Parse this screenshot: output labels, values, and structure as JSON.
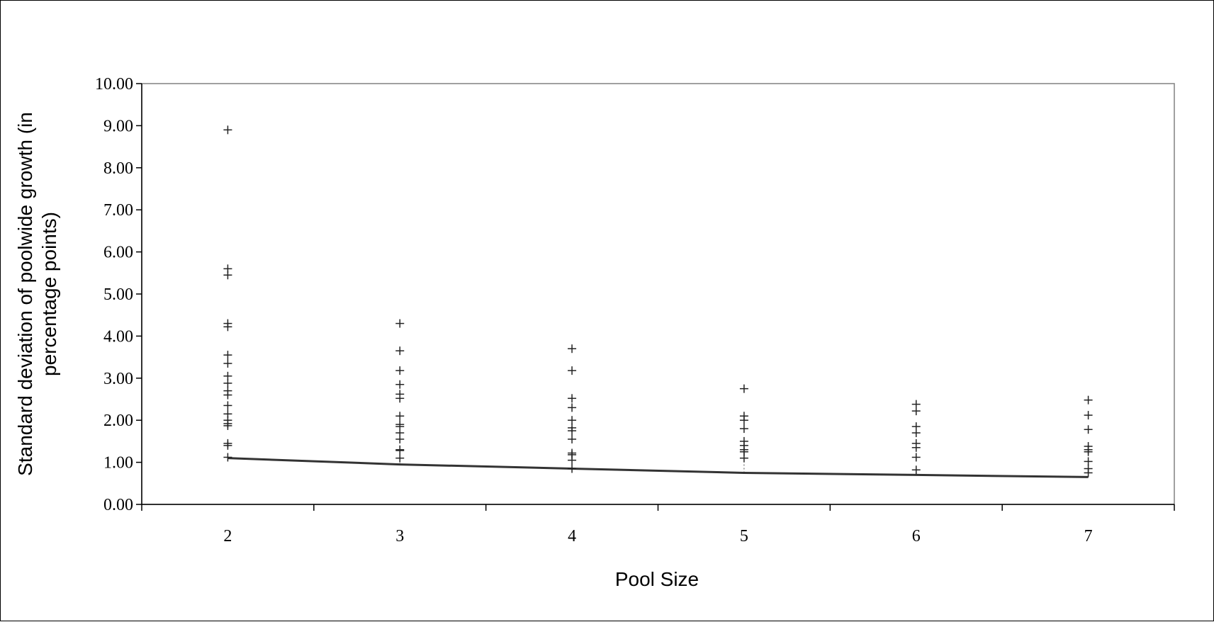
{
  "chart_data": {
    "type": "scatter",
    "title": "",
    "xlabel": "Pool Size",
    "ylabel_lines": [
      "Standard deviation of poolwide growth (in",
      "percentage points)"
    ],
    "categories": [
      "2",
      "3",
      "4",
      "5",
      "6",
      "7"
    ],
    "ylim": [
      0,
      10
    ],
    "y_ticks": [
      "0.00",
      "1.00",
      "2.00",
      "3.00",
      "4.00",
      "5.00",
      "6.00",
      "7.00",
      "8.00",
      "9.00",
      "10.00"
    ],
    "grid": false,
    "legend": "none",
    "colors": {
      "points": "#222222",
      "line": "#333333",
      "axis": "#000000"
    },
    "series": [
      {
        "type": "scatter",
        "marker": "plus",
        "points": [
          [
            2,
            8.9
          ],
          [
            2,
            5.6
          ],
          [
            2,
            5.45
          ],
          [
            2,
            4.3
          ],
          [
            2,
            4.22
          ],
          [
            2,
            3.55
          ],
          [
            2,
            3.35
          ],
          [
            2,
            3.05
          ],
          [
            2,
            2.88
          ],
          [
            2,
            2.7
          ],
          [
            2,
            2.6
          ],
          [
            2,
            2.35
          ],
          [
            2,
            2.15
          ],
          [
            2,
            2.0
          ],
          [
            2,
            1.92
          ],
          [
            2,
            1.87
          ],
          [
            2,
            1.45
          ],
          [
            2,
            1.4
          ],
          [
            2,
            1.12
          ],
          [
            3,
            4.3
          ],
          [
            3,
            3.65
          ],
          [
            3,
            3.18
          ],
          [
            3,
            2.85
          ],
          [
            3,
            2.62
          ],
          [
            3,
            2.52
          ],
          [
            3,
            2.1
          ],
          [
            3,
            1.9
          ],
          [
            3,
            1.85
          ],
          [
            3,
            1.7
          ],
          [
            3,
            1.55
          ],
          [
            3,
            1.3
          ],
          [
            3,
            1.28
          ],
          [
            3,
            1.1
          ],
          [
            4,
            3.7
          ],
          [
            4,
            3.18
          ],
          [
            4,
            2.52
          ],
          [
            4,
            2.3
          ],
          [
            4,
            2.0
          ],
          [
            4,
            1.82
          ],
          [
            4,
            1.75
          ],
          [
            4,
            1.55
          ],
          [
            4,
            1.22
          ],
          [
            4,
            1.18
          ],
          [
            4,
            1.05
          ],
          [
            4,
            0.85
          ],
          [
            5,
            2.75
          ],
          [
            5,
            2.1
          ],
          [
            5,
            2.0
          ],
          [
            5,
            1.8
          ],
          [
            5,
            1.5
          ],
          [
            5,
            1.4
          ],
          [
            5,
            1.3
          ],
          [
            5,
            1.25
          ],
          [
            5,
            1.1
          ],
          [
            6,
            2.38
          ],
          [
            6,
            2.22
          ],
          [
            6,
            1.85
          ],
          [
            6,
            1.7
          ],
          [
            6,
            1.45
          ],
          [
            6,
            1.35
          ],
          [
            6,
            1.12
          ],
          [
            6,
            0.82
          ],
          [
            7,
            2.48
          ],
          [
            7,
            2.12
          ],
          [
            7,
            1.78
          ],
          [
            7,
            1.38
          ],
          [
            7,
            1.3
          ],
          [
            7,
            1.25
          ],
          [
            7,
            1.02
          ],
          [
            7,
            0.85
          ],
          [
            7,
            0.75
          ]
        ]
      },
      {
        "type": "line",
        "values": [
          1.1,
          0.95,
          0.85,
          0.75,
          0.7,
          0.65
        ]
      }
    ]
  }
}
